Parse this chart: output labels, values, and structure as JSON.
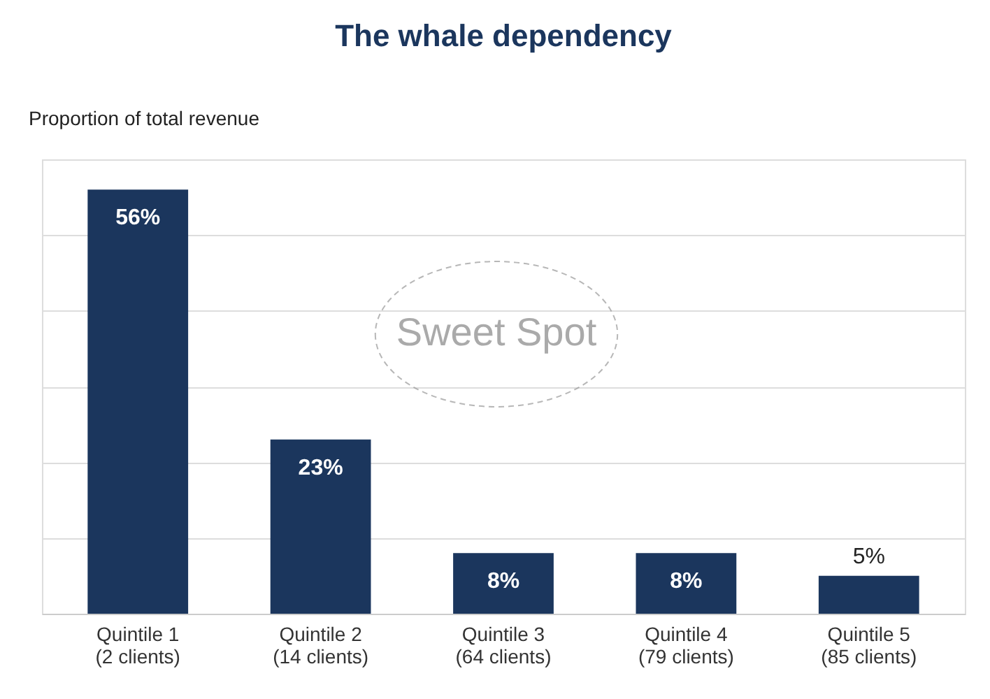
{
  "chart_data": {
    "type": "bar",
    "title": "The whale dependency",
    "ylabel": "Proportion of total revenue",
    "categories": [
      "Quintile 1\n(2 clients)",
      "Quintile 2\n(14 clients)",
      "Quintile 3\n(64 clients)",
      "Quintile 4\n(79 clients)",
      "Quintile 5\n(85 clients)"
    ],
    "values": [
      56,
      23,
      8,
      8,
      5
    ],
    "value_labels": [
      "56%",
      "23%",
      "8%",
      "8%",
      "5%"
    ],
    "color": "#1b365d",
    "ylim": [
      0,
      60
    ],
    "yticks": [
      {
        "value": 0,
        "label": null
      },
      {
        "value": 10,
        "label": null
      },
      {
        "value": 20,
        "label": null
      },
      {
        "value": 30,
        "label": null
      },
      {
        "value": 40,
        "label": null
      },
      {
        "value": 50,
        "label": null
      },
      {
        "value": 60,
        "label": null
      }
    ],
    "tick_labels": "x",
    "grid": "y",
    "annotations": [
      "Sweet Spot"
    ]
  }
}
